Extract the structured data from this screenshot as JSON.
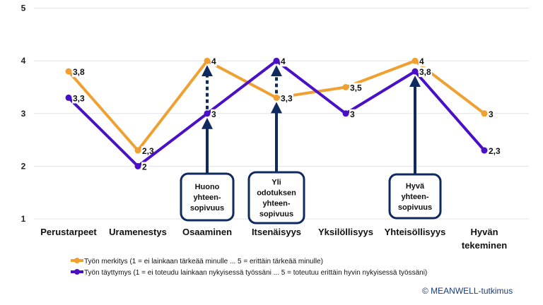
{
  "chart_data": {
    "type": "line",
    "categories": [
      "Perustarpeet",
      "Uramenestys",
      "Osaaminen",
      "Itsenäisyys",
      "Yksilöllisyys",
      "Yhteisöllisyys",
      "Hyvän tekeminen"
    ],
    "ylim": [
      1,
      5
    ],
    "yticks": [
      "1",
      "2",
      "3",
      "4",
      "5"
    ],
    "grid": true,
    "legend_position": "bottom",
    "series": [
      {
        "name": "Työn merkitys (1 = ei lainkaan tärkeää minulle ... 5 = erittäin tärkeää minulle)",
        "color": "#F0A030",
        "values": [
          3.8,
          2.3,
          4,
          3.3,
          3.5,
          4,
          3
        ],
        "labels": [
          "3,8",
          "2,3",
          "4",
          "3,3",
          "3,5",
          "4",
          "3"
        ]
      },
      {
        "name": "Työn täyttymys (1 = ei toteudu lainkaan nykyisessä työssäni ... 5 = toteutuu erittäin hyvin nykyisessä työssäni)",
        "color": "#4A10C8",
        "values": [
          3.3,
          2,
          3,
          4,
          3,
          3.8,
          2.3
        ],
        "labels": [
          "3,3",
          "2",
          "3",
          "4",
          "3",
          "3,8",
          "2,3"
        ]
      }
    ],
    "annotations": [
      {
        "category": "Osaaminen",
        "lines": [
          "Huono",
          "yhteen-",
          "sopivuus"
        ]
      },
      {
        "category": "Itsenäisyys",
        "lines": [
          "Yli",
          "odotuksen",
          "yhteen-",
          "sopivuus"
        ]
      },
      {
        "category": "Yhteisöllisyys",
        "lines": [
          "Hyvä",
          "yhteen-",
          "sopivuus"
        ]
      }
    ],
    "annotation_color": "#0E2A5E"
  },
  "copyright": "© MEANWELL-tutkimus"
}
